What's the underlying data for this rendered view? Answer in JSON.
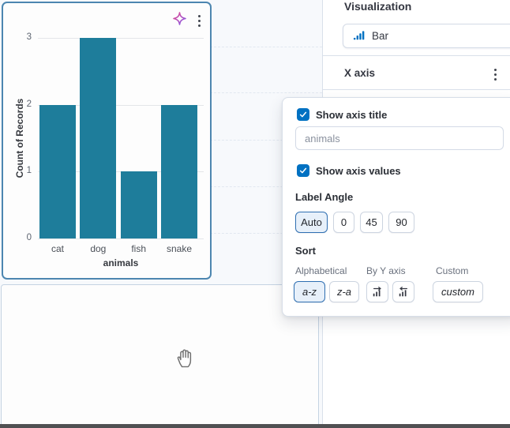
{
  "chart_data": {
    "type": "bar",
    "categories": [
      "cat",
      "dog",
      "fish",
      "snake"
    ],
    "values": [
      2,
      3,
      1,
      2
    ],
    "title": "",
    "xlabel": "animals",
    "ylabel": "Count of Records",
    "yticks": [
      3,
      2,
      1,
      0
    ],
    "ylim": [
      0,
      3
    ],
    "grid": "horizontal gridlines on",
    "legend": "none",
    "bar_color": "#1e7d9b"
  },
  "right_panel": {
    "visualization_heading": "Visualization",
    "chart_type_label": "Bar",
    "x_axis_heading": "X axis"
  },
  "popover": {
    "show_axis_title_label": "Show axis title",
    "show_axis_title_checked": true,
    "axis_title_placeholder": "animals",
    "axis_title_value": "",
    "show_axis_values_label": "Show axis values",
    "show_axis_values_checked": true,
    "label_angle_heading": "Label Angle",
    "angle_options": [
      "Auto",
      "0",
      "45",
      "90"
    ],
    "angle_selected": "Auto",
    "sort_heading": "Sort",
    "sort_group_alphabetical": "Alphabetical",
    "sort_group_by_y_axis": "By Y axis",
    "sort_group_custom": "Custom",
    "sort_az_label": "a-z",
    "sort_za_label": "z-a",
    "sort_custom_label": "custom",
    "sort_selected": "a-z"
  },
  "icons": {
    "sparkle": "ai-sparkle-icon",
    "panel_menu": "vertical-dots-icon",
    "chart_type": "bar-chart-icon",
    "x_axis_menu": "vertical-dots-icon",
    "sort_by_y_asc": "bars-arrow-right-icon",
    "sort_by_y_desc": "bars-arrow-left-icon",
    "cursor": "grab-hand-icon"
  },
  "colors": {
    "accent_blue": "#0071c2",
    "bar_fill": "#1e7d9b",
    "selected_panel_border": "#4d86b0",
    "selected_button_bg": "#e7f0fa",
    "sparkle_gradient": [
      "#e8488b",
      "#7e5bef"
    ]
  }
}
